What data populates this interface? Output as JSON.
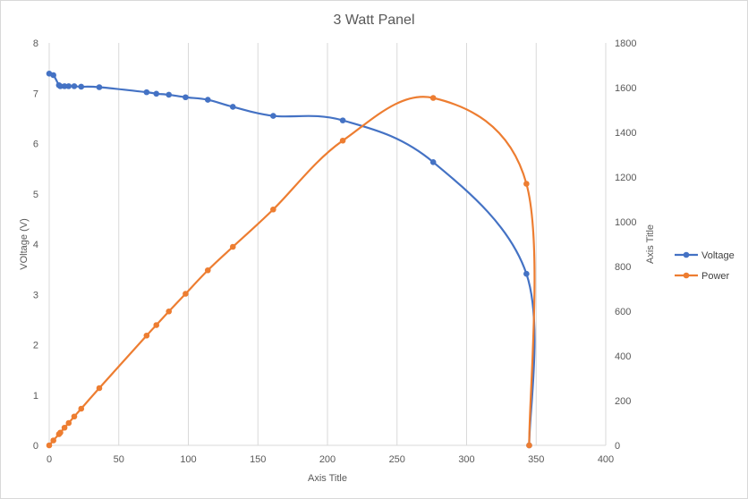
{
  "chart_data": {
    "type": "scatter",
    "title": "3 Watt Panel",
    "xlabel": "Axis Title",
    "ylabel_left": "VOltage (V)",
    "ylabel_right": "Axis Title",
    "xlim": [
      0,
      400
    ],
    "ylim_left": [
      0,
      8
    ],
    "ylim_right": [
      0,
      1800
    ],
    "xticks": [
      "0",
      "50",
      "100",
      "150",
      "200",
      "250",
      "300",
      "350",
      "400"
    ],
    "yticks_left": [
      "0",
      "1",
      "2",
      "3",
      "4",
      "5",
      "6",
      "7",
      "8"
    ],
    "yticks_right": [
      "0",
      "200",
      "400",
      "600",
      "800",
      "1000",
      "1200",
      "1400",
      "1600",
      "1800"
    ],
    "grid": "vertical",
    "legend_position": "right",
    "series": [
      {
        "name": "Voltage",
        "axis": "left",
        "color": "#4472c4",
        "points": [
          [
            0,
            7.39
          ],
          [
            3,
            7.36
          ],
          [
            7,
            7.16
          ],
          [
            8,
            7.14
          ],
          [
            11,
            7.14
          ],
          [
            14,
            7.14
          ],
          [
            18,
            7.14
          ],
          [
            23,
            7.13
          ],
          [
            36,
            7.12
          ],
          [
            70,
            7.02
          ],
          [
            77,
            6.99
          ],
          [
            86,
            6.97
          ],
          [
            98,
            6.92
          ],
          [
            114,
            6.87
          ],
          [
            132,
            6.73
          ],
          [
            161,
            6.55
          ],
          [
            211,
            6.46
          ],
          [
            276,
            5.63
          ],
          [
            343,
            3.41
          ],
          [
            345,
            0
          ]
        ]
      },
      {
        "name": "Power",
        "axis": "right",
        "color": "#ed7d31",
        "points": [
          [
            0,
            0
          ],
          [
            3,
            22
          ],
          [
            7,
            50
          ],
          [
            8,
            57
          ],
          [
            11,
            79
          ],
          [
            14,
            100
          ],
          [
            18,
            129
          ],
          [
            23,
            164
          ],
          [
            36,
            256
          ],
          [
            70,
            491
          ],
          [
            77,
            538
          ],
          [
            86,
            599
          ],
          [
            98,
            678
          ],
          [
            114,
            783
          ],
          [
            132,
            888
          ],
          [
            161,
            1055
          ],
          [
            211,
            1363
          ],
          [
            276,
            1554
          ],
          [
            343,
            1170
          ],
          [
            345,
            0
          ]
        ]
      }
    ]
  }
}
